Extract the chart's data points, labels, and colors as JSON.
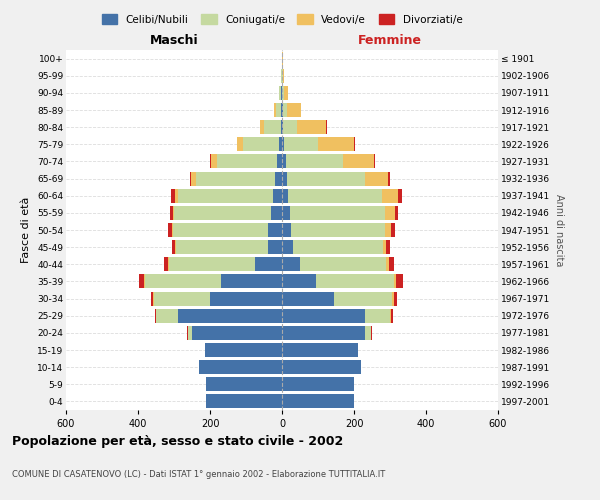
{
  "age_groups": [
    "0-4",
    "5-9",
    "10-14",
    "15-19",
    "20-24",
    "25-29",
    "30-34",
    "35-39",
    "40-44",
    "45-49",
    "50-54",
    "55-59",
    "60-64",
    "65-69",
    "70-74",
    "75-79",
    "80-84",
    "85-89",
    "90-94",
    "95-99",
    "100+"
  ],
  "birth_years": [
    "1997-2001",
    "1992-1996",
    "1987-1991",
    "1982-1986",
    "1977-1981",
    "1972-1976",
    "1967-1971",
    "1962-1966",
    "1957-1961",
    "1952-1956",
    "1947-1951",
    "1942-1946",
    "1937-1941",
    "1932-1936",
    "1927-1931",
    "1922-1926",
    "1917-1921",
    "1912-1916",
    "1907-1911",
    "1902-1906",
    "≤ 1901"
  ],
  "maschi": {
    "celibi": [
      210,
      210,
      230,
      215,
      250,
      290,
      200,
      170,
      75,
      40,
      38,
      30,
      25,
      20,
      15,
      8,
      4,
      3,
      2,
      1,
      1
    ],
    "coniugati": [
      0,
      0,
      0,
      0,
      12,
      60,
      155,
      210,
      240,
      255,
      265,
      270,
      265,
      220,
      165,
      100,
      45,
      15,
      5,
      1,
      0
    ],
    "vedovi": [
      0,
      0,
      0,
      0,
      0,
      0,
      2,
      2,
      2,
      3,
      3,
      4,
      8,
      12,
      18,
      18,
      12,
      5,
      2,
      0,
      0
    ],
    "divorziati": [
      0,
      0,
      0,
      0,
      2,
      3,
      6,
      15,
      10,
      8,
      12,
      8,
      10,
      3,
      2,
      0,
      0,
      0,
      0,
      0,
      0
    ]
  },
  "femmine": {
    "nubili": [
      200,
      200,
      220,
      210,
      230,
      230,
      145,
      95,
      50,
      30,
      25,
      22,
      18,
      15,
      10,
      5,
      3,
      2,
      1,
      1,
      1
    ],
    "coniugate": [
      0,
      0,
      0,
      0,
      18,
      70,
      160,
      215,
      240,
      250,
      260,
      265,
      260,
      215,
      160,
      95,
      40,
      12,
      5,
      1,
      0
    ],
    "vedove": [
      0,
      0,
      0,
      0,
      0,
      3,
      5,
      6,
      8,
      10,
      18,
      28,
      45,
      65,
      85,
      100,
      80,
      40,
      12,
      3,
      1
    ],
    "divorziate": [
      0,
      0,
      0,
      0,
      2,
      4,
      10,
      20,
      12,
      10,
      10,
      8,
      10,
      4,
      3,
      2,
      1,
      0,
      0,
      0,
      0
    ]
  },
  "color_celibi": "#4472a8",
  "color_coniugati": "#c5d9a0",
  "color_vedovi": "#f0c060",
  "color_divorziati": "#cc2222",
  "xlim": 600,
  "title": "Popolazione per età, sesso e stato civile - 2002",
  "subtitle": "COMUNE DI CASATENOVO (LC) - Dati ISTAT 1° gennaio 2002 - Elaborazione TUTTITALIA.IT",
  "xlabel_left": "Maschi",
  "xlabel_right": "Femmine",
  "ylabel": "Fasce di età",
  "ylabel_right": "Anni di nascita",
  "legend_celibi": "Celibi/Nubili",
  "legend_coniugati": "Coniugati/e",
  "legend_vedovi": "Vedovi/e",
  "legend_divorziati": "Divorziati/e",
  "bg_color": "#f0f0f0",
  "plot_bg": "#ffffff",
  "grid_color": "#dddddd"
}
